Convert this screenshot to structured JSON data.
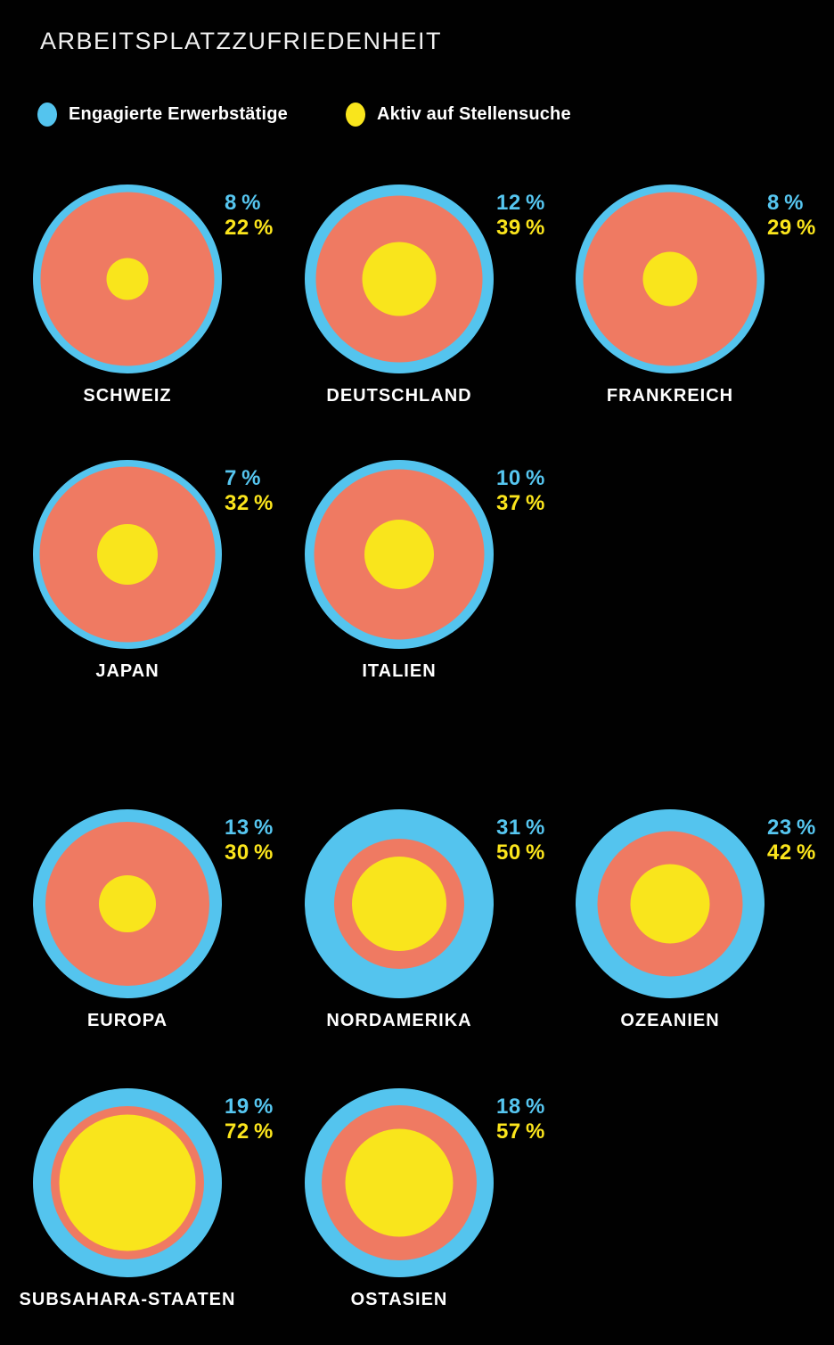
{
  "title": "ARBEITSPLATZZUFRIEDENHEIT",
  "legend": {
    "engaged": {
      "label": "Engagierte Erwerbstätige",
      "color": "#54C4EE"
    },
    "seeking": {
      "label": "Aktiv auf Stellensuche",
      "color": "#F9E51C"
    }
  },
  "percent_suffix": " %",
  "colors": {
    "background": "#000000",
    "blue": "#54C4EE",
    "orange": "#EF7A62",
    "yellow": "#F9E51C",
    "label_text": "#FFFFFF",
    "title_text": "#F0F0F0",
    "engaged_value_text": "#56C6F0",
    "seeking_value_text": "#FBE51C"
  },
  "chart_data": {
    "type": "concentric-circle-chart",
    "title": "ARBEITSPLATZZUFRIEDENHEIT",
    "unit": "%",
    "series": [
      {
        "name": "Engagierte Erwerbstätige",
        "color": "#54C4EE",
        "encoding": "thickness of outer blue ring (percent of radius)"
      },
      {
        "name": "Aktiv auf Stellensuche",
        "color": "#F9E51C",
        "encoding": "radius of yellow core (percent of outer radius)"
      }
    ],
    "rows": [
      {
        "items": [
          {
            "label": "SCHWEIZ",
            "engaged": 8,
            "seeking": 22
          },
          {
            "label": "DEUTSCHLAND",
            "engaged": 12,
            "seeking": 39
          },
          {
            "label": "FRANKREICH",
            "engaged": 8,
            "seeking": 29
          }
        ]
      },
      {
        "items": [
          {
            "label": "JAPAN",
            "engaged": 7,
            "seeking": 32
          },
          {
            "label": "ITALIEN",
            "engaged": 10,
            "seeking": 37
          }
        ]
      },
      {
        "items": [
          {
            "label": "EUROPA",
            "engaged": 13,
            "seeking": 30
          },
          {
            "label": "NORDAMERIKA",
            "engaged": 31,
            "seeking": 50
          },
          {
            "label": "OZEANIEN",
            "engaged": 23,
            "seeking": 42
          }
        ]
      },
      {
        "items": [
          {
            "label": "SUBSAHARA-STAATEN",
            "engaged": 19,
            "seeking": 72
          },
          {
            "label": "OSTASIEN",
            "engaged": 18,
            "seeking": 57
          }
        ]
      }
    ]
  }
}
